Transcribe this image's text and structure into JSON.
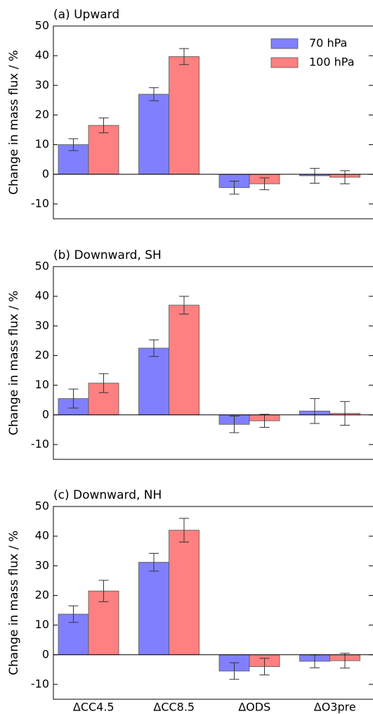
{
  "chart_data": [
    {
      "type": "bar",
      "title": "(a) Upward",
      "ylabel": "Change in mass flux / %",
      "ylim": [
        -15,
        50
      ],
      "yticks": [
        -10,
        0,
        10,
        20,
        30,
        40,
        50
      ],
      "legend": "upper right",
      "series": [
        {
          "name": "70 hPa",
          "color": "#8080ff",
          "values": [
            10,
            27,
            -4.5,
            -0.5
          ],
          "errors": [
            2,
            2.2,
            2.2,
            2.5
          ]
        },
        {
          "name": "100 hPa",
          "color": "#ff8080",
          "values": [
            16.5,
            39.7,
            -3.2,
            -1
          ],
          "errors": [
            2.5,
            2.7,
            2,
            2.2
          ]
        }
      ]
    },
    {
      "type": "bar",
      "title": "(b) Downward, SH",
      "ylabel": "Change in mass flux / %",
      "ylim": [
        -15,
        50
      ],
      "yticks": [
        -10,
        0,
        10,
        20,
        30,
        40,
        50
      ],
      "series": [
        {
          "color": "#8080ff",
          "values": [
            5.5,
            22.5,
            -3.2,
            1.3
          ],
          "errors": [
            3.2,
            2.8,
            2.8,
            4.2
          ]
        },
        {
          "color": "#ff8080",
          "values": [
            10.7,
            37,
            -2,
            0.5
          ],
          "errors": [
            3.2,
            3,
            2.2,
            4
          ]
        }
      ]
    },
    {
      "type": "bar",
      "title": "(c) Downward, NH",
      "ylabel": "Change in mass flux / %",
      "ylim": [
        -15,
        50
      ],
      "yticks": [
        -10,
        0,
        10,
        20,
        30,
        40,
        50
      ],
      "categories": [
        "ΔCC4.5",
        "ΔCC8.5",
        "ΔODS",
        "ΔO3pre"
      ],
      "series": [
        {
          "color": "#8080ff",
          "values": [
            13.7,
            31.2,
            -5.5,
            -2.2
          ],
          "errors": [
            2.8,
            3,
            2.8,
            2.2
          ]
        },
        {
          "color": "#ff8080",
          "values": [
            21.5,
            42,
            -4,
            -2
          ],
          "errors": [
            3.6,
            4,
            2.8,
            2.5
          ]
        }
      ]
    }
  ]
}
